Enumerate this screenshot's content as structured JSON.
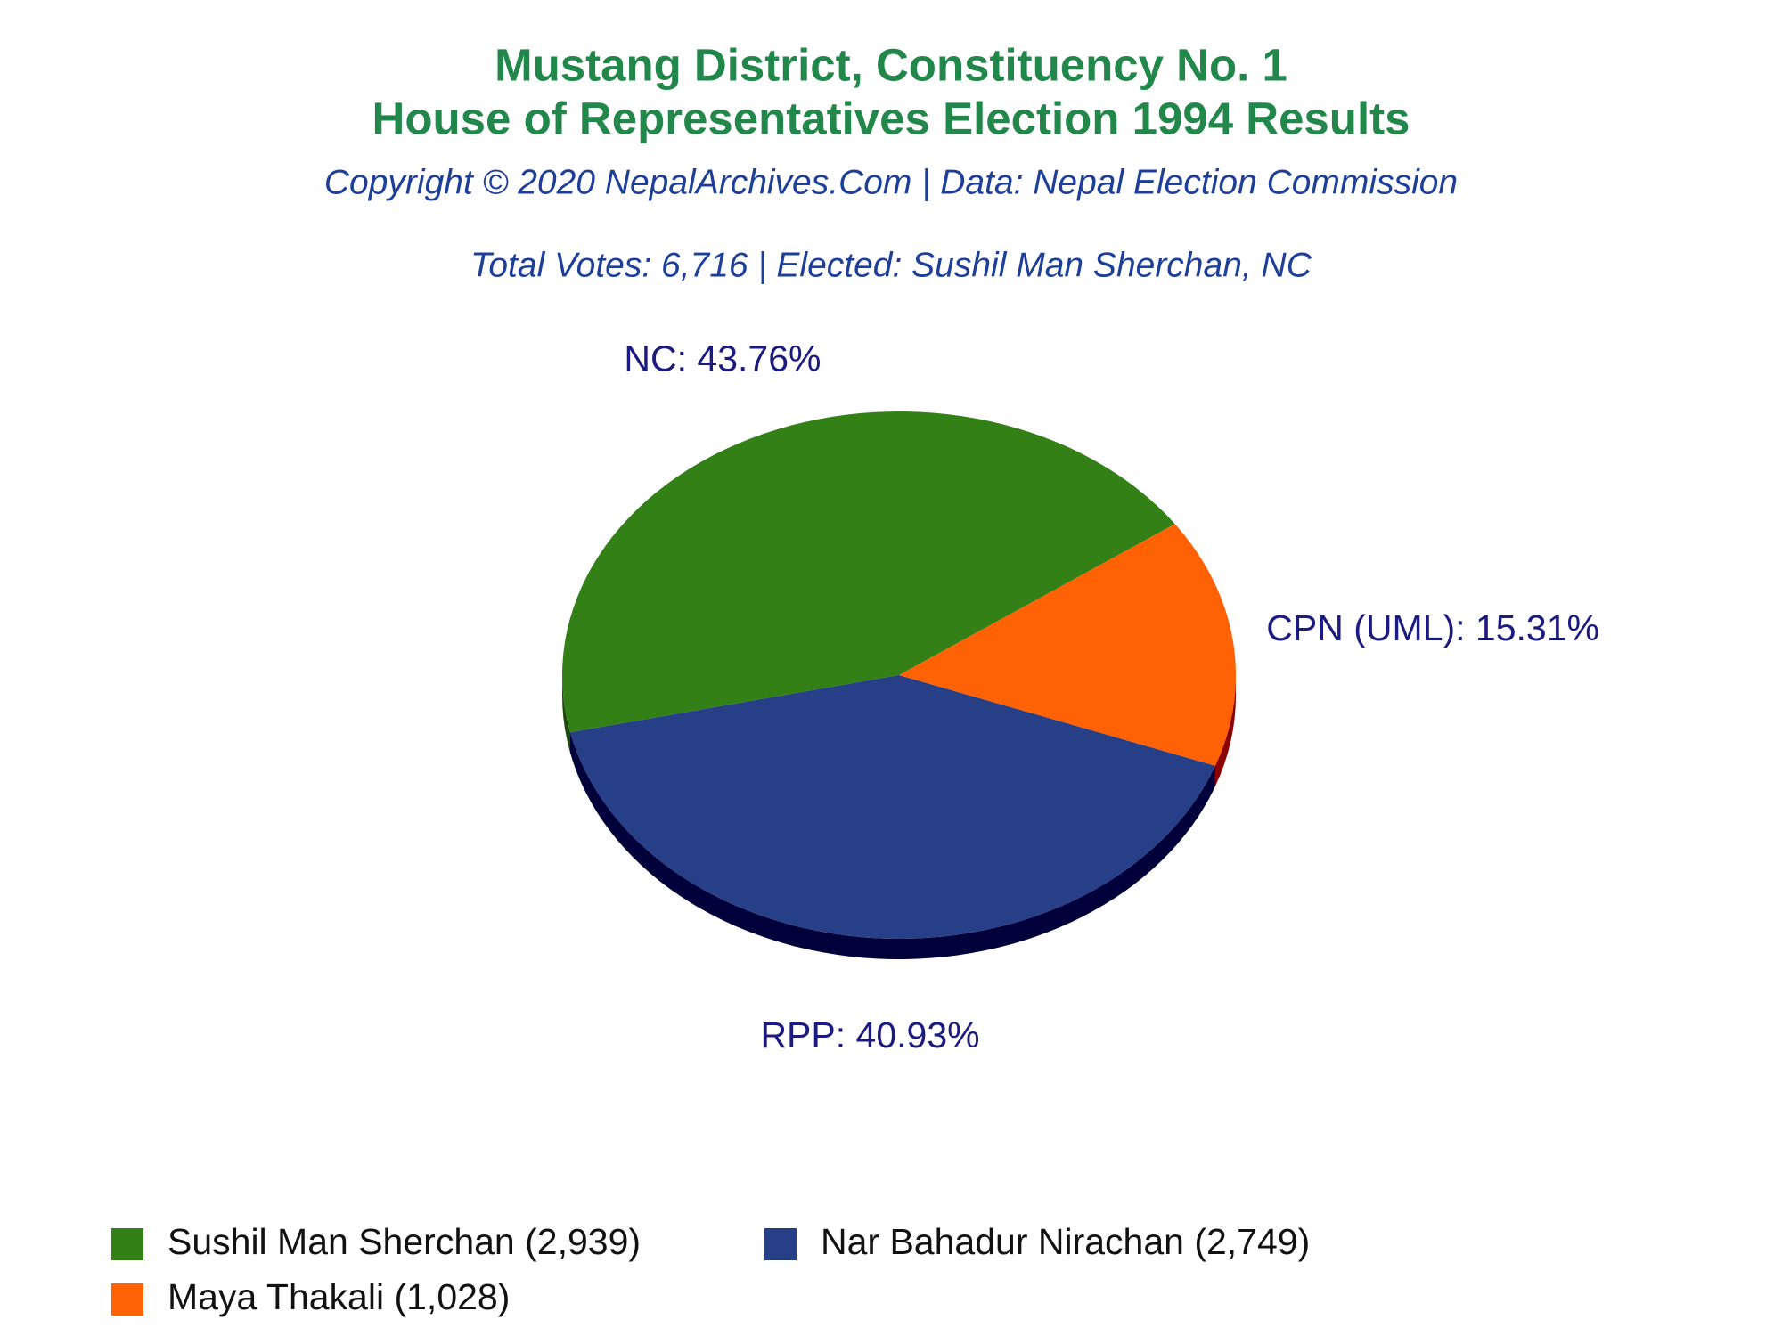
{
  "chart_data": {
    "type": "pie",
    "title_lines": [
      "Mustang District, Constituency No. 1",
      "House of Representatives Election 1994 Results"
    ],
    "subtitle": "Copyright © 2020 NepalArchives.Com | Data: Nepal Election Commission",
    "annotation": "Total Votes: 6,716 | Elected: Sushil Man Sherchan, NC",
    "values": [
      43.76,
      40.93,
      15.31
    ],
    "value_labels": [
      "NC: 43.76%",
      "RPP: 40.93%",
      "CPN (UML): 15.31%"
    ],
    "legend": [
      "Sushil Man Sherchan (2,939)",
      "Nar Bahadur Nirachan (2,749)",
      "Maya Thakali (1,028)"
    ],
    "colors": [
      "#338017",
      "#263f87",
      "#ff6105"
    ],
    "depth_colors": [
      "#1c4a0c",
      "#00003a",
      "#8b0000"
    ]
  }
}
